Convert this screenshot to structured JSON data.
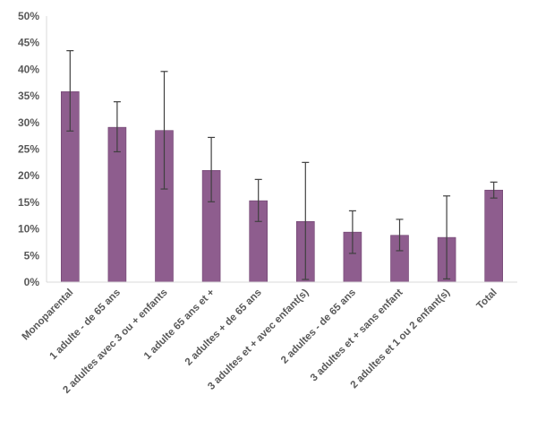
{
  "chart_data": {
    "type": "bar",
    "title": "",
    "xlabel": "",
    "ylabel": "",
    "ylim": [
      0,
      50
    ],
    "y_ticks": [
      0,
      5,
      10,
      15,
      20,
      25,
      30,
      35,
      40,
      45,
      50
    ],
    "y_tick_suffix": "%",
    "grid": false,
    "categories": [
      "Monoparental",
      "1 adulte - de 65 ans",
      "2 adultes avec 3 ou + enfants",
      "1 adulte 65 ans et +",
      "2 adultes + de 65 ans",
      "3 adultes et + avec enfant(s)",
      "2 adultes - de 65 ans",
      "3 adultes et + sans enfant",
      "2 adultes et 1 ou 2 enfant(s)",
      "Total"
    ],
    "values": [
      35.8,
      29.1,
      28.5,
      21.0,
      15.3,
      11.4,
      9.4,
      8.8,
      8.4,
      17.3
    ],
    "error_low": [
      28.4,
      24.5,
      17.5,
      15.1,
      11.4,
      0.5,
      5.4,
      5.9,
      0.6,
      15.8
    ],
    "error_high": [
      43.5,
      33.9,
      39.6,
      27.2,
      19.3,
      22.5,
      13.4,
      11.8,
      16.2,
      18.8
    ],
    "colors": {
      "bar": "#8E5D8E",
      "bar_edge": "#6E416E",
      "error_bar": "#404040",
      "axis": "#D9D9D9",
      "text": "#595959"
    }
  }
}
